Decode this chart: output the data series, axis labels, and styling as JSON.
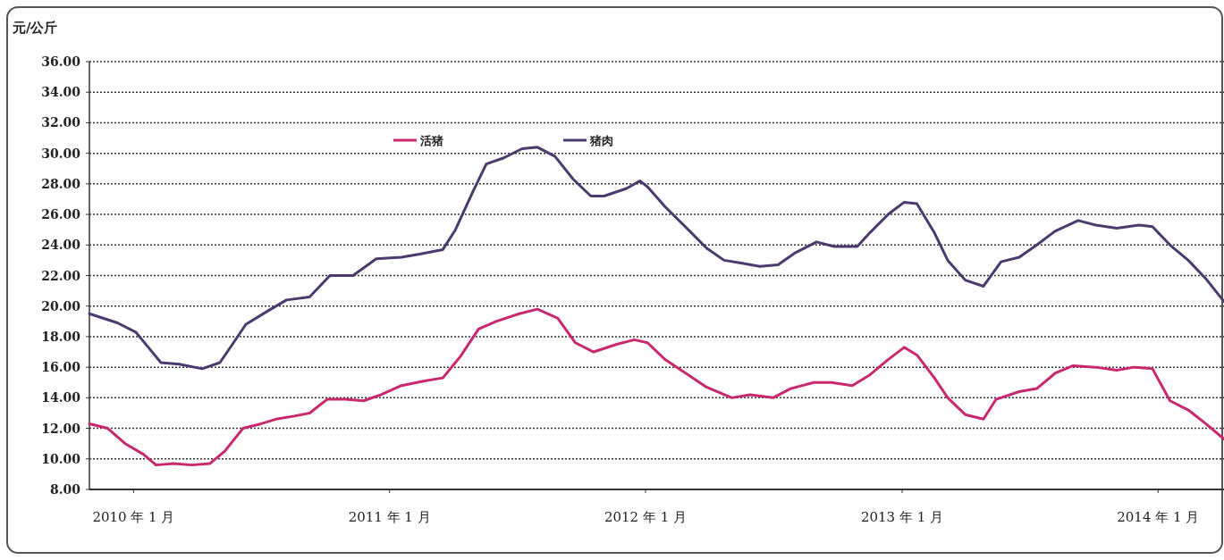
{
  "chart_data": {
    "type": "line",
    "ylabel": "元/公斤",
    "xlim": [
      "2009-10-30",
      "2014-04-05"
    ],
    "xticks": [
      {
        "value": "2010-01",
        "label": "2010 年 1 月"
      },
      {
        "value": "2011-01",
        "label": "2011 年 1 月"
      },
      {
        "value": "2012-01",
        "label": "2012 年 1 月"
      },
      {
        "value": "2013-01",
        "label": "2013 年 1 月"
      },
      {
        "value": "2014-01",
        "label": "2014 年 1 月"
      }
    ],
    "ylim": [
      8,
      36
    ],
    "yticks": [
      {
        "value": 8,
        "label": "8.00"
      },
      {
        "value": 10,
        "label": "10.00"
      },
      {
        "value": 12,
        "label": "12.00"
      },
      {
        "value": 14,
        "label": "14.00"
      },
      {
        "value": 16,
        "label": "16.00"
      },
      {
        "value": 18,
        "label": "18.00"
      },
      {
        "value": 20,
        "label": "20.00"
      },
      {
        "value": 22,
        "label": "22.00"
      },
      {
        "value": 24,
        "label": "24.00"
      },
      {
        "value": 26,
        "label": "26.00"
      },
      {
        "value": 28,
        "label": "28.00"
      },
      {
        "value": 30,
        "label": "30.00"
      },
      {
        "value": 32,
        "label": "32.00"
      },
      {
        "value": 34,
        "label": "34.00"
      },
      {
        "value": 36,
        "label": "36.00"
      }
    ],
    "grid": "y",
    "legend": "top",
    "marker": "none",
    "line_style": "solid",
    "series": [
      {
        "name": "活猪",
        "color": "#c8286e",
        "x": [
          "2009-10-30",
          "2009-11-25",
          "2009-12-20",
          "2010-01-15",
          "2010-02-02",
          "2010-02-27",
          "2010-03-25",
          "2010-04-20",
          "2010-05-11",
          "2010-06-06",
          "2010-07-02",
          "2010-07-23",
          "2010-08-18",
          "2010-09-09",
          "2010-10-04",
          "2010-10-30",
          "2010-11-25",
          "2010-12-20",
          "2011-01-18",
          "2011-02-20",
          "2011-03-18",
          "2011-04-12",
          "2011-05-08",
          "2011-06-02",
          "2011-07-05",
          "2011-07-31",
          "2011-08-29",
          "2011-09-23",
          "2011-10-19",
          "2011-11-21",
          "2011-12-16",
          "2012-01-04",
          "2012-01-29",
          "2012-03-02",
          "2012-03-28",
          "2012-05-03",
          "2012-05-29",
          "2012-07-01",
          "2012-07-26",
          "2012-08-28",
          "2012-09-22",
          "2012-10-22",
          "2012-11-16",
          "2012-12-12",
          "2013-01-04",
          "2013-01-22",
          "2013-02-16",
          "2013-03-07",
          "2013-04-01",
          "2013-04-27",
          "2013-05-15",
          "2013-06-17",
          "2013-07-12",
          "2013-08-07",
          "2013-09-02",
          "2013-10-04",
          "2013-11-03",
          "2013-11-28",
          "2013-12-24",
          "2014-01-18",
          "2014-02-13",
          "2014-03-10",
          "2014-04-05"
        ],
        "values": [
          12.3,
          12.0,
          11.0,
          10.3,
          9.6,
          9.7,
          9.6,
          9.7,
          10.5,
          12.0,
          12.3,
          12.6,
          12.8,
          13.0,
          13.9,
          13.9,
          13.8,
          14.2,
          14.8,
          15.1,
          15.3,
          16.7,
          18.5,
          19.0,
          19.5,
          19.8,
          19.2,
          17.6,
          17.0,
          17.5,
          17.8,
          17.6,
          16.5,
          15.5,
          14.7,
          14.0,
          14.2,
          14.0,
          14.6,
          15.0,
          15.0,
          14.8,
          15.5,
          16.5,
          17.3,
          16.8,
          15.3,
          14.0,
          12.9,
          12.6,
          13.9,
          14.4,
          14.6,
          15.6,
          16.1,
          16.0,
          15.8,
          16.0,
          15.9,
          13.8,
          13.2,
          12.3,
          11.3
        ]
      },
      {
        "name": "猪肉",
        "color": "#4b3a6e",
        "x": [
          "2009-10-30",
          "2009-12-09",
          "2010-01-04",
          "2010-01-22",
          "2010-02-09",
          "2010-03-07",
          "2010-04-09",
          "2010-05-04",
          "2010-05-22",
          "2010-06-10",
          "2010-07-12",
          "2010-08-07",
          "2010-09-09",
          "2010-10-08",
          "2010-11-10",
          "2010-12-13",
          "2011-01-18",
          "2011-02-13",
          "2011-03-18",
          "2011-04-05",
          "2011-04-30",
          "2011-05-19",
          "2011-06-13",
          "2011-07-09",
          "2011-07-31",
          "2011-08-25",
          "2011-09-20",
          "2011-10-15",
          "2011-11-03",
          "2011-12-05",
          "2011-12-24",
          "2012-01-04",
          "2012-01-29",
          "2012-03-02",
          "2012-03-28",
          "2012-04-22",
          "2012-05-18",
          "2012-06-12",
          "2012-07-08",
          "2012-08-02",
          "2012-09-01",
          "2012-09-26",
          "2012-10-29",
          "2012-11-16",
          "2012-12-12",
          "2013-01-04",
          "2013-01-22",
          "2013-02-16",
          "2013-03-07",
          "2013-04-01",
          "2013-04-27",
          "2013-05-22",
          "2013-06-17",
          "2013-07-12",
          "2013-08-07",
          "2013-09-09",
          "2013-10-04",
          "2013-11-03",
          "2013-12-05",
          "2013-12-24",
          "2014-01-18",
          "2014-02-13",
          "2014-03-10",
          "2014-04-05"
        ],
        "values": [
          19.5,
          18.9,
          18.3,
          17.3,
          16.3,
          16.2,
          15.9,
          16.3,
          17.5,
          18.8,
          19.7,
          20.4,
          20.6,
          22.0,
          22.0,
          23.1,
          23.2,
          23.4,
          23.7,
          25.0,
          27.5,
          29.3,
          29.7,
          30.3,
          30.4,
          29.8,
          28.3,
          27.2,
          27.2,
          27.7,
          28.2,
          27.8,
          26.5,
          25.0,
          23.8,
          23.0,
          22.8,
          22.6,
          22.7,
          23.5,
          24.2,
          23.9,
          23.9,
          24.8,
          26.0,
          26.8,
          26.7,
          24.8,
          23.0,
          21.7,
          21.3,
          22.9,
          23.2,
          24.0,
          24.9,
          25.6,
          25.3,
          25.1,
          25.3,
          25.2,
          24.0,
          23.0,
          21.8,
          20.3
        ]
      }
    ]
  }
}
